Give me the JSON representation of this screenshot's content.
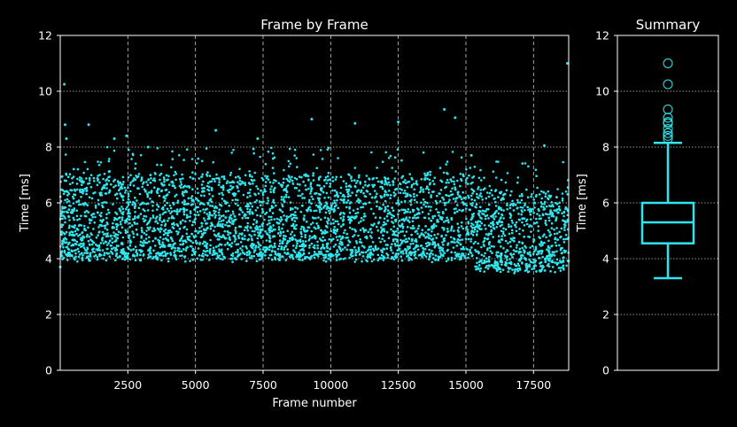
{
  "colors": {
    "background": "#000000",
    "foreground": "#ffffff",
    "series": "#2ee6ee"
  },
  "chart_data": [
    {
      "type": "scatter",
      "title": "Frame by Frame",
      "xlabel": "Frame number",
      "ylabel": "Time [ms]",
      "xlim": [
        0,
        18800
      ],
      "ylim": [
        0,
        12
      ],
      "xticks": [
        2500,
        5000,
        7500,
        10000,
        12500,
        15000,
        17500
      ],
      "xtick_labels": [
        "2500",
        "5000",
        "7500",
        "10000",
        "12500",
        "15000",
        "17500"
      ],
      "yticks": [
        0,
        2,
        4,
        6,
        8,
        10,
        12
      ],
      "ytick_labels": [
        "0",
        "2",
        "4",
        "6",
        "8",
        "10",
        "12"
      ],
      "grid": true,
      "series": [
        {
          "points_sample": [
            [
              0,
              3.7
            ],
            [
              60,
              4.1
            ],
            [
              150,
              10.25
            ],
            [
              180,
              8.8
            ],
            [
              230,
              8.3
            ],
            [
              1050,
              8.8
            ],
            [
              2000,
              8.3
            ],
            [
              2450,
              8.4
            ],
            [
              3250,
              8.0
            ],
            [
              5750,
              8.6
            ],
            [
              7300,
              8.3
            ],
            [
              9300,
              9.0
            ],
            [
              10900,
              8.85
            ],
            [
              12500,
              8.9
            ],
            [
              14200,
              9.35
            ],
            [
              14600,
              9.05
            ],
            [
              15200,
              7.7
            ],
            [
              17900,
              8.05
            ],
            [
              18750,
              11.0
            ]
          ],
          "segments": [
            {
              "x_range": [
                0,
                15300
              ],
              "baseline_ms": 4.0,
              "median_ms": 5.5,
              "upper_ms": 7.0
            },
            {
              "x_range": [
                15300,
                18800
              ],
              "baseline_ms": 3.6,
              "median_ms": 4.8,
              "upper_ms": 6.5
            }
          ],
          "point_count": 18800
        }
      ]
    },
    {
      "type": "box",
      "title": "Summary",
      "ylabel": "Time [ms]",
      "ylim": [
        0,
        12
      ],
      "yticks": [
        0,
        2,
        4,
        6,
        8,
        10,
        12
      ],
      "ytick_labels": [
        "0",
        "2",
        "4",
        "6",
        "8",
        "10",
        "12"
      ],
      "grid": true,
      "box": {
        "whisker_low": 3.3,
        "q1": 4.55,
        "median": 5.3,
        "q3": 6.0,
        "whisker_high": 8.15
      },
      "outliers": [
        11.0,
        10.25,
        9.35,
        9.05,
        8.9,
        8.85,
        8.65,
        8.5,
        8.4,
        8.3
      ]
    }
  ]
}
